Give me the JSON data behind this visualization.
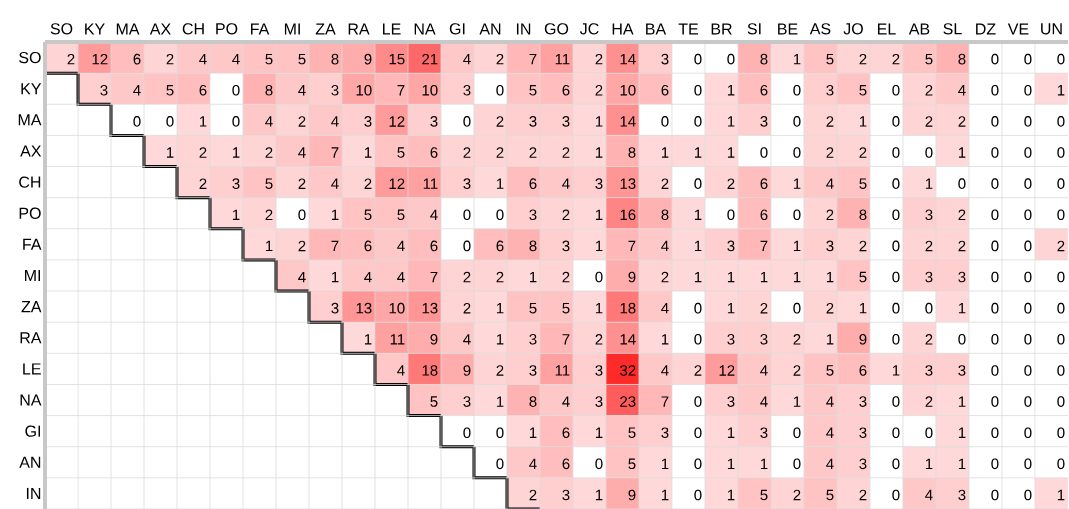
{
  "chart_data": {
    "type": "heatmap",
    "grid": true,
    "data_labels": true,
    "categories": [
      "SO",
      "KY",
      "MA",
      "AX",
      "CH",
      "PO",
      "FA",
      "MI",
      "ZA",
      "RA",
      "LE",
      "NA",
      "GI",
      "AN",
      "IN",
      "GO",
      "JC",
      "HA",
      "BA",
      "TE",
      "BR",
      "SI",
      "BE",
      "AS",
      "JO",
      "EL",
      "AB",
      "SL",
      "DZ",
      "VE",
      "UN"
    ],
    "y_categories": [
      "SO",
      "KY",
      "MA",
      "AX",
      "CH",
      "PO",
      "FA",
      "MI",
      "ZA",
      "RA",
      "LE",
      "NA",
      "GI",
      "AN",
      "IN"
    ],
    "cells": [
      [
        2,
        12,
        6,
        2,
        4,
        4,
        5,
        5,
        8,
        9,
        15,
        21,
        4,
        2,
        7,
        11,
        2,
        14,
        3,
        0,
        0,
        8,
        1,
        5,
        2,
        2,
        5,
        8,
        0,
        0,
        0
      ],
      [
        null,
        3,
        4,
        5,
        6,
        0,
        8,
        4,
        3,
        10,
        7,
        10,
        3,
        0,
        5,
        6,
        2,
        10,
        6,
        0,
        1,
        6,
        0,
        3,
        5,
        0,
        2,
        4,
        0,
        0,
        1
      ],
      [
        null,
        null,
        0,
        0,
        1,
        0,
        4,
        2,
        4,
        3,
        12,
        3,
        0,
        2,
        3,
        3,
        1,
        14,
        0,
        0,
        1,
        3,
        0,
        2,
        1,
        0,
        2,
        2,
        0,
        0,
        0
      ],
      [
        null,
        null,
        null,
        1,
        2,
        1,
        2,
        4,
        7,
        1,
        5,
        6,
        2,
        2,
        2,
        2,
        1,
        8,
        1,
        1,
        1,
        0,
        0,
        2,
        2,
        0,
        0,
        1,
        0,
        0,
        0
      ],
      [
        null,
        null,
        null,
        null,
        2,
        3,
        5,
        2,
        4,
        2,
        12,
        11,
        3,
        1,
        6,
        4,
        3,
        13,
        2,
        0,
        2,
        6,
        1,
        4,
        5,
        0,
        1,
        0,
        0,
        0,
        0
      ],
      [
        null,
        null,
        null,
        null,
        null,
        1,
        2,
        0,
        1,
        5,
        5,
        4,
        0,
        0,
        3,
        2,
        1,
        16,
        8,
        1,
        0,
        6,
        0,
        2,
        8,
        0,
        3,
        2,
        0,
        0,
        0
      ],
      [
        null,
        null,
        null,
        null,
        null,
        null,
        1,
        2,
        7,
        6,
        4,
        6,
        0,
        6,
        8,
        3,
        1,
        7,
        4,
        1,
        3,
        7,
        1,
        3,
        2,
        0,
        2,
        2,
        0,
        0,
        2
      ],
      [
        null,
        null,
        null,
        null,
        null,
        null,
        null,
        4,
        1,
        4,
        4,
        7,
        2,
        2,
        1,
        2,
        0,
        9,
        2,
        1,
        1,
        1,
        1,
        1,
        5,
        0,
        3,
        3,
        0,
        0,
        0
      ],
      [
        null,
        null,
        null,
        null,
        null,
        null,
        null,
        null,
        3,
        13,
        10,
        13,
        2,
        1,
        5,
        5,
        1,
        18,
        4,
        0,
        1,
        2,
        0,
        2,
        1,
        0,
        0,
        1,
        0,
        0,
        0
      ],
      [
        null,
        null,
        null,
        null,
        null,
        null,
        null,
        null,
        null,
        1,
        11,
        9,
        4,
        1,
        3,
        7,
        2,
        14,
        1,
        0,
        3,
        3,
        2,
        1,
        9,
        0,
        2,
        0,
        0,
        0,
        0
      ],
      [
        null,
        null,
        null,
        null,
        null,
        null,
        null,
        null,
        null,
        null,
        4,
        18,
        9,
        2,
        3,
        11,
        3,
        32,
        4,
        2,
        12,
        4,
        2,
        5,
        6,
        1,
        3,
        3,
        0,
        0,
        0
      ],
      [
        null,
        null,
        null,
        null,
        null,
        null,
        null,
        null,
        null,
        null,
        null,
        5,
        3,
        1,
        8,
        4,
        3,
        23,
        7,
        0,
        3,
        4,
        1,
        4,
        3,
        0,
        2,
        1,
        0,
        0,
        0
      ],
      [
        null,
        null,
        null,
        null,
        null,
        null,
        null,
        null,
        null,
        null,
        null,
        null,
        0,
        0,
        1,
        6,
        1,
        5,
        3,
        0,
        1,
        3,
        0,
        4,
        3,
        0,
        0,
        1,
        0,
        0,
        0
      ],
      [
        null,
        null,
        null,
        null,
        null,
        null,
        null,
        null,
        null,
        null,
        null,
        null,
        null,
        0,
        4,
        6,
        0,
        5,
        1,
        0,
        1,
        1,
        0,
        4,
        3,
        0,
        1,
        1,
        0,
        0,
        0
      ],
      [
        null,
        null,
        null,
        null,
        null,
        null,
        null,
        null,
        null,
        null,
        null,
        null,
        null,
        null,
        2,
        3,
        1,
        9,
        1,
        0,
        1,
        5,
        2,
        5,
        2,
        0,
        4,
        3,
        0,
        0,
        1
      ]
    ]
  }
}
